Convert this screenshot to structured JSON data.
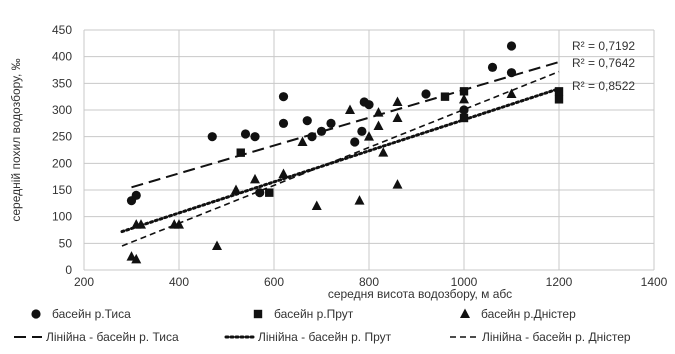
{
  "chart_data": {
    "type": "scatter",
    "xlabel": "середня висота водозбору, м абс",
    "ylabel": "середній похил водозбору, ‰",
    "xlim": [
      200,
      1400
    ],
    "ylim": [
      0,
      450
    ],
    "x_ticks": [
      "200",
      "400",
      "600",
      "800",
      "1000",
      "1200",
      "1400"
    ],
    "y_ticks": [
      "0",
      "50",
      "100",
      "150",
      "200",
      "250",
      "300",
      "350",
      "400",
      "450"
    ],
    "grid": true,
    "legend_position": "bottom",
    "series": [
      {
        "name": "басейн р.Тиса",
        "marker": "circle",
        "points": [
          [
            300,
            130
          ],
          [
            310,
            140
          ],
          [
            470,
            250
          ],
          [
            540,
            255
          ],
          [
            560,
            250
          ],
          [
            570,
            145
          ],
          [
            620,
            325
          ],
          [
            620,
            275
          ],
          [
            670,
            280
          ],
          [
            680,
            250
          ],
          [
            700,
            260
          ],
          [
            720,
            275
          ],
          [
            770,
            240
          ],
          [
            785,
            260
          ],
          [
            790,
            315
          ],
          [
            800,
            310
          ],
          [
            920,
            330
          ],
          [
            1000,
            300
          ],
          [
            1060,
            380
          ],
          [
            1100,
            420
          ],
          [
            1100,
            370
          ]
        ]
      },
      {
        "name": "басейн р.Прут",
        "marker": "square",
        "points": [
          [
            530,
            220
          ],
          [
            590,
            145
          ],
          [
            960,
            325
          ],
          [
            1000,
            285
          ],
          [
            1000,
            335
          ],
          [
            1200,
            335
          ],
          [
            1200,
            320
          ]
        ]
      },
      {
        "name": "басейн р.Дністер",
        "marker": "triangle",
        "points": [
          [
            300,
            25
          ],
          [
            310,
            85
          ],
          [
            310,
            20
          ],
          [
            320,
            85
          ],
          [
            390,
            85
          ],
          [
            400,
            85
          ],
          [
            480,
            45
          ],
          [
            520,
            150
          ],
          [
            560,
            170
          ],
          [
            620,
            180
          ],
          [
            660,
            240
          ],
          [
            690,
            120
          ],
          [
            760,
            300
          ],
          [
            780,
            130
          ],
          [
            800,
            250
          ],
          [
            820,
            295
          ],
          [
            820,
            270
          ],
          [
            830,
            220
          ],
          [
            860,
            315
          ],
          [
            860,
            160
          ],
          [
            860,
            285
          ],
          [
            1000,
            320
          ],
          [
            1100,
            330
          ]
        ]
      }
    ],
    "trendlines": [
      {
        "name": "Лінійна - басейн р. Тиса",
        "style": "long-dash",
        "from": [
          300,
          155
        ],
        "to": [
          1200,
          390
        ],
        "r2_label": "R² = 0,7192"
      },
      {
        "name": "Лінійна - басейн р. Прут",
        "style": "dotted",
        "from": [
          280,
          72
        ],
        "to": [
          1200,
          340
        ],
        "r2_label": "R² = 0,8522"
      },
      {
        "name": "Лінійна - басейн р. Дністер",
        "style": "dash",
        "from": [
          280,
          45
        ],
        "to": [
          1200,
          372
        ],
        "r2_label": "R² = 0,7642"
      }
    ]
  }
}
